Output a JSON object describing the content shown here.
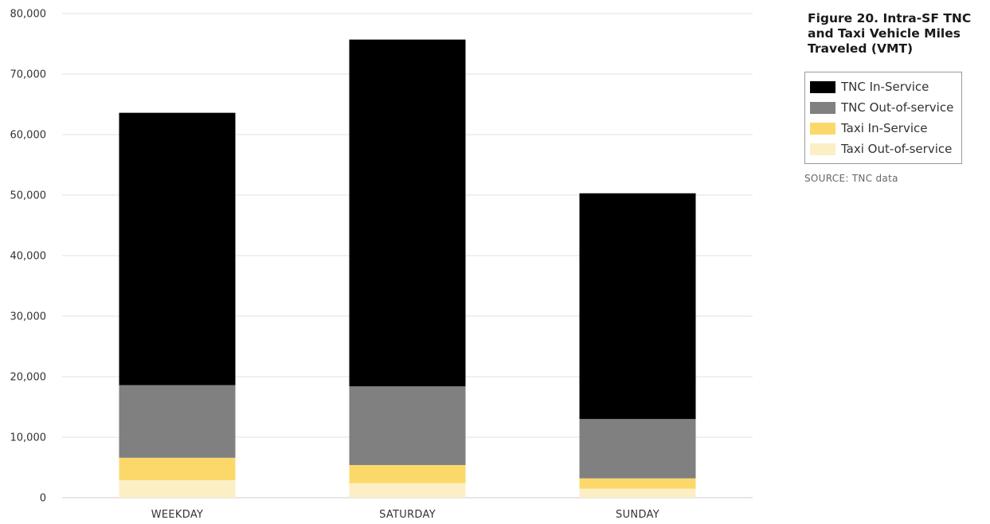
{
  "chart_data": {
    "type": "bar",
    "stacked": true,
    "title": "Figure 20. Intra-SF TNC and Taxi Vehicle Miles Traveled (VMT)",
    "xlabel": "",
    "ylabel": "",
    "ylim": [
      0,
      80000
    ],
    "yticks": [
      0,
      10000,
      20000,
      30000,
      40000,
      50000,
      60000,
      70000,
      80000
    ],
    "ytick_labels": [
      "0",
      "10,000",
      "20,000",
      "30,000",
      "40,000",
      "50,000",
      "60,000",
      "70,000",
      "80,000"
    ],
    "grid": true,
    "legend_position": "right",
    "categories": [
      "WEEKDAY",
      "SATURDAY",
      "SUNDAY"
    ],
    "series": [
      {
        "name": "Taxi Out-of-service",
        "color": "#fcefc6",
        "values": [
          2900,
          2400,
          1500
        ]
      },
      {
        "name": "Taxi In-Service",
        "color": "#fcd86a",
        "values": [
          3700,
          3000,
          1700
        ]
      },
      {
        "name": "TNC Out-of-service",
        "color": "#808080",
        "values": [
          12000,
          13000,
          9800
        ]
      },
      {
        "name": "TNC In-Service",
        "color": "#000000",
        "values": [
          45000,
          57300,
          37300
        ]
      }
    ],
    "legend_order": [
      "TNC In-Service",
      "TNC Out-of-service",
      "Taxi In-Service",
      "Taxi Out-of-service"
    ]
  },
  "figure": {
    "title": "Figure 20. Intra-SF TNC and Taxi Vehicle Miles Traveled (VMT)",
    "source": "SOURCE: TNC data"
  }
}
